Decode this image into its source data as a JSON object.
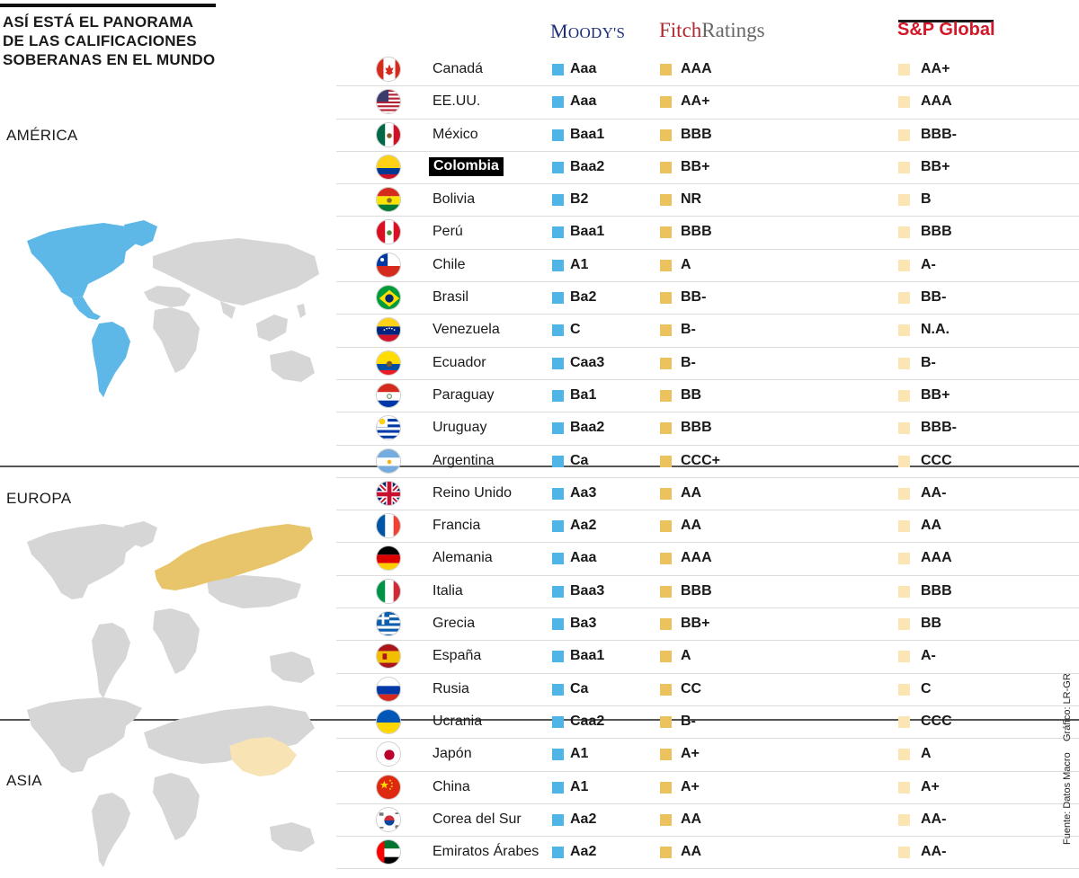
{
  "title_lines": [
    "ASÍ ESTÁ EL PANORAMA",
    "DE LAS CALIFICACIONES",
    "SOBERANAS EN EL MUNDO"
  ],
  "agencies": {
    "moodys": {
      "cap_m": "M",
      "rest": "OODY'S"
    },
    "fitch": {
      "part1": "Fitch",
      "part2": "Ratings"
    },
    "sp": "S&P Global"
  },
  "colors": {
    "moodys": "#4fb5e6",
    "fitch": "#ebc25e",
    "sp": "#fbe6b3",
    "map_base": "#d6d6d6",
    "america": "#5db8e8",
    "europe": "#e8c46a",
    "asia": "#f8e3b4"
  },
  "regions": [
    {
      "name": "AMÉRICA",
      "highlight": "america-map"
    },
    {
      "name": "EUROPA",
      "highlight": "europe-map"
    },
    {
      "name": "ASIA",
      "highlight": "asia-map"
    }
  ],
  "chart_data": {
    "type": "table",
    "title": "ASÍ ESTÁ EL PANORAMA DE LAS CALIFICACIONES SOBERANAS EN EL MUNDO",
    "columns": [
      "Moody's",
      "Fitch Ratings",
      "S&P Global"
    ],
    "rows": [
      {
        "region": "AMÉRICA",
        "country": "Canadá",
        "flag": "canada-flag",
        "moodys": "Aaa",
        "fitch": "AAA",
        "sp": "AA+"
      },
      {
        "region": "AMÉRICA",
        "country": "EE.UU.",
        "flag": "usa-flag",
        "moodys": "Aaa",
        "fitch": "AA+",
        "sp": "AAA"
      },
      {
        "region": "AMÉRICA",
        "country": "México",
        "flag": "mexico-flag",
        "moodys": "Baa1",
        "fitch": "BBB",
        "sp": "BBB-"
      },
      {
        "region": "AMÉRICA",
        "country": "Colombia",
        "flag": "colombia-flag",
        "moodys": "Baa2",
        "fitch": "BB+",
        "sp": "BB+",
        "highlight": true
      },
      {
        "region": "AMÉRICA",
        "country": "Bolivia",
        "flag": "bolivia-flag",
        "moodys": "B2",
        "fitch": "NR",
        "sp": "B"
      },
      {
        "region": "AMÉRICA",
        "country": "Perú",
        "flag": "peru-flag",
        "moodys": "Baa1",
        "fitch": "BBB",
        "sp": "BBB"
      },
      {
        "region": "AMÉRICA",
        "country": "Chile",
        "flag": "chile-flag",
        "moodys": "A1",
        "fitch": "A",
        "sp": "A-"
      },
      {
        "region": "AMÉRICA",
        "country": "Brasil",
        "flag": "brazil-flag",
        "moodys": "Ba2",
        "fitch": "BB-",
        "sp": "BB-"
      },
      {
        "region": "AMÉRICA",
        "country": "Venezuela",
        "flag": "venezuela-flag",
        "moodys": "C",
        "fitch": "B-",
        "sp": "N.A."
      },
      {
        "region": "AMÉRICA",
        "country": "Ecuador",
        "flag": "ecuador-flag",
        "moodys": "Caa3",
        "fitch": "B-",
        "sp": "B-"
      },
      {
        "region": "AMÉRICA",
        "country": "Paraguay",
        "flag": "paraguay-flag",
        "moodys": "Ba1",
        "fitch": "BB",
        "sp": "BB+"
      },
      {
        "region": "AMÉRICA",
        "country": "Uruguay",
        "flag": "uruguay-flag",
        "moodys": "Baa2",
        "fitch": "BBB",
        "sp": "BBB-"
      },
      {
        "region": "AMÉRICA",
        "country": "Argentina",
        "flag": "argentina-flag",
        "moodys": "Ca",
        "fitch": "CCC+",
        "sp": "CCC"
      },
      {
        "region": "EUROPA",
        "country": "Reino Unido",
        "flag": "uk-flag",
        "moodys": "Aa3",
        "fitch": "AA",
        "sp": "AA-"
      },
      {
        "region": "EUROPA",
        "country": "Francia",
        "flag": "france-flag",
        "moodys": "Aa2",
        "fitch": "AA",
        "sp": "AA"
      },
      {
        "region": "EUROPA",
        "country": "Alemania",
        "flag": "germany-flag",
        "moodys": "Aaa",
        "fitch": "AAA",
        "sp": "AAA"
      },
      {
        "region": "EUROPA",
        "country": "Italia",
        "flag": "italy-flag",
        "moodys": "Baa3",
        "fitch": "BBB",
        "sp": "BBB"
      },
      {
        "region": "EUROPA",
        "country": "Grecia",
        "flag": "greece-flag",
        "moodys": "Ba3",
        "fitch": "BB+",
        "sp": "BB"
      },
      {
        "region": "EUROPA",
        "country": "España",
        "flag": "spain-flag",
        "moodys": "Baa1",
        "fitch": "A",
        "sp": "A-"
      },
      {
        "region": "EUROPA",
        "country": "Rusia",
        "flag": "russia-flag",
        "moodys": "Ca",
        "fitch": "CC",
        "sp": "C"
      },
      {
        "region": "EUROPA",
        "country": "Ucrania",
        "flag": "ukraine-flag",
        "moodys": "Caa2",
        "fitch": "B-",
        "sp": "CCC"
      },
      {
        "region": "ASIA",
        "country": "Japón",
        "flag": "japan-flag",
        "moodys": "A1",
        "fitch": "A+",
        "sp": "A"
      },
      {
        "region": "ASIA",
        "country": "China",
        "flag": "china-flag",
        "moodys": "A1",
        "fitch": "A+",
        "sp": "A+"
      },
      {
        "region": "ASIA",
        "country": "Corea del Sur",
        "flag": "south-korea-flag",
        "moodys": "Aa2",
        "fitch": "AA",
        "sp": "AA-"
      },
      {
        "region": "ASIA",
        "country": "Emiratos Árabes",
        "flag": "uae-flag",
        "moodys": "Aa2",
        "fitch": "AA",
        "sp": "AA-"
      }
    ]
  },
  "credits": {
    "graphic": "Gráfico: LR-GR",
    "source": "Fuente: Datos Macro"
  }
}
